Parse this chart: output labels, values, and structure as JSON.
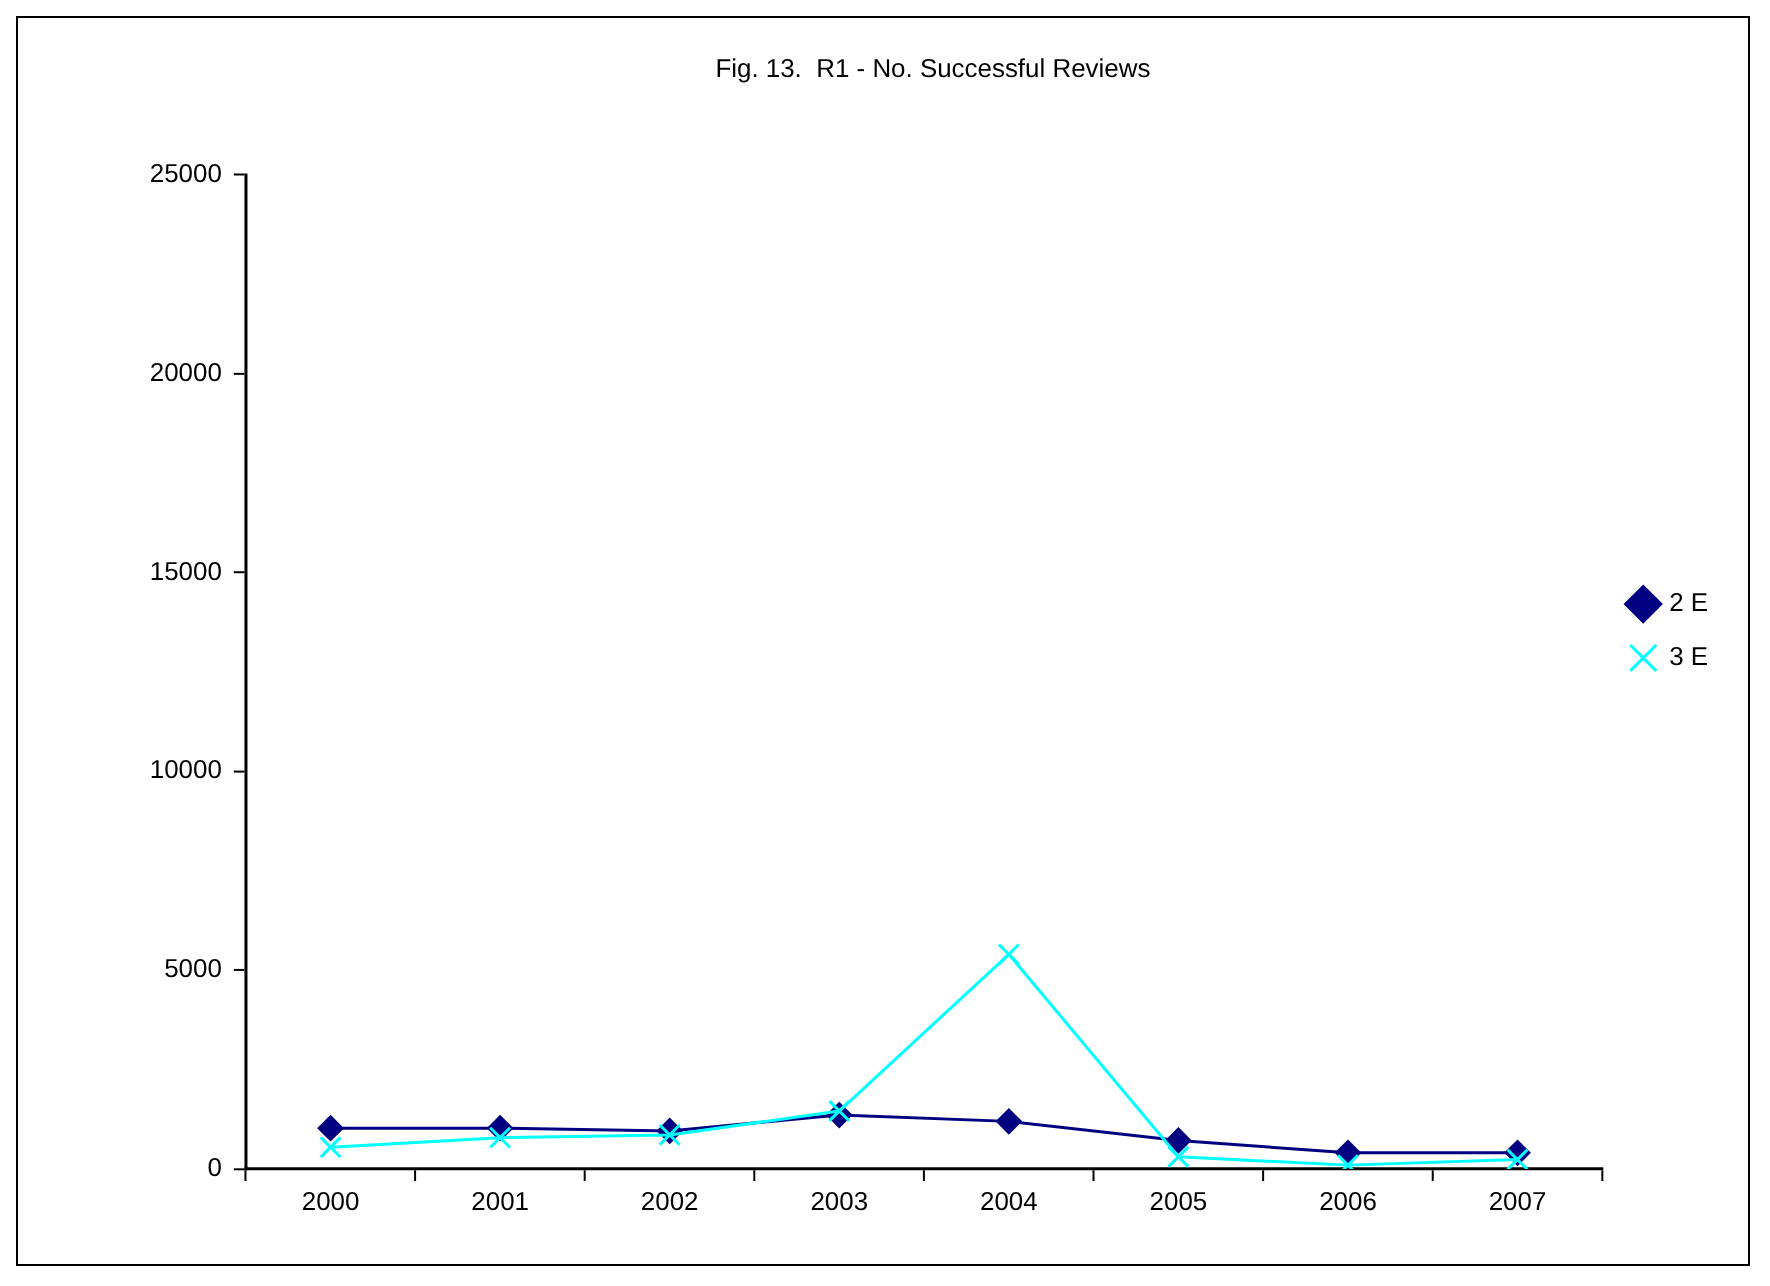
{
  "chart_data": {
    "type": "line",
    "title": "Fig. 13.  R1 - No. Successful Reviews",
    "categories": [
      "2000",
      "2001",
      "2002",
      "2003",
      "2004",
      "2005",
      "2006",
      "2007"
    ],
    "series": [
      {
        "name": "2 E",
        "color": "#000080",
        "marker": "diamond",
        "values": [
          1030,
          1030,
          960,
          1360,
          1200,
          720,
          410,
          410
        ]
      },
      {
        "name": "3 E",
        "color": "#00ffff",
        "marker": "cross",
        "values": [
          550,
          790,
          860,
          1460,
          5400,
          310,
          100,
          240
        ]
      }
    ],
    "ylim": [
      0,
      25000
    ],
    "yticks": [
      0,
      5000,
      10000,
      15000,
      20000,
      25000
    ],
    "grid": false,
    "legend": "right"
  }
}
